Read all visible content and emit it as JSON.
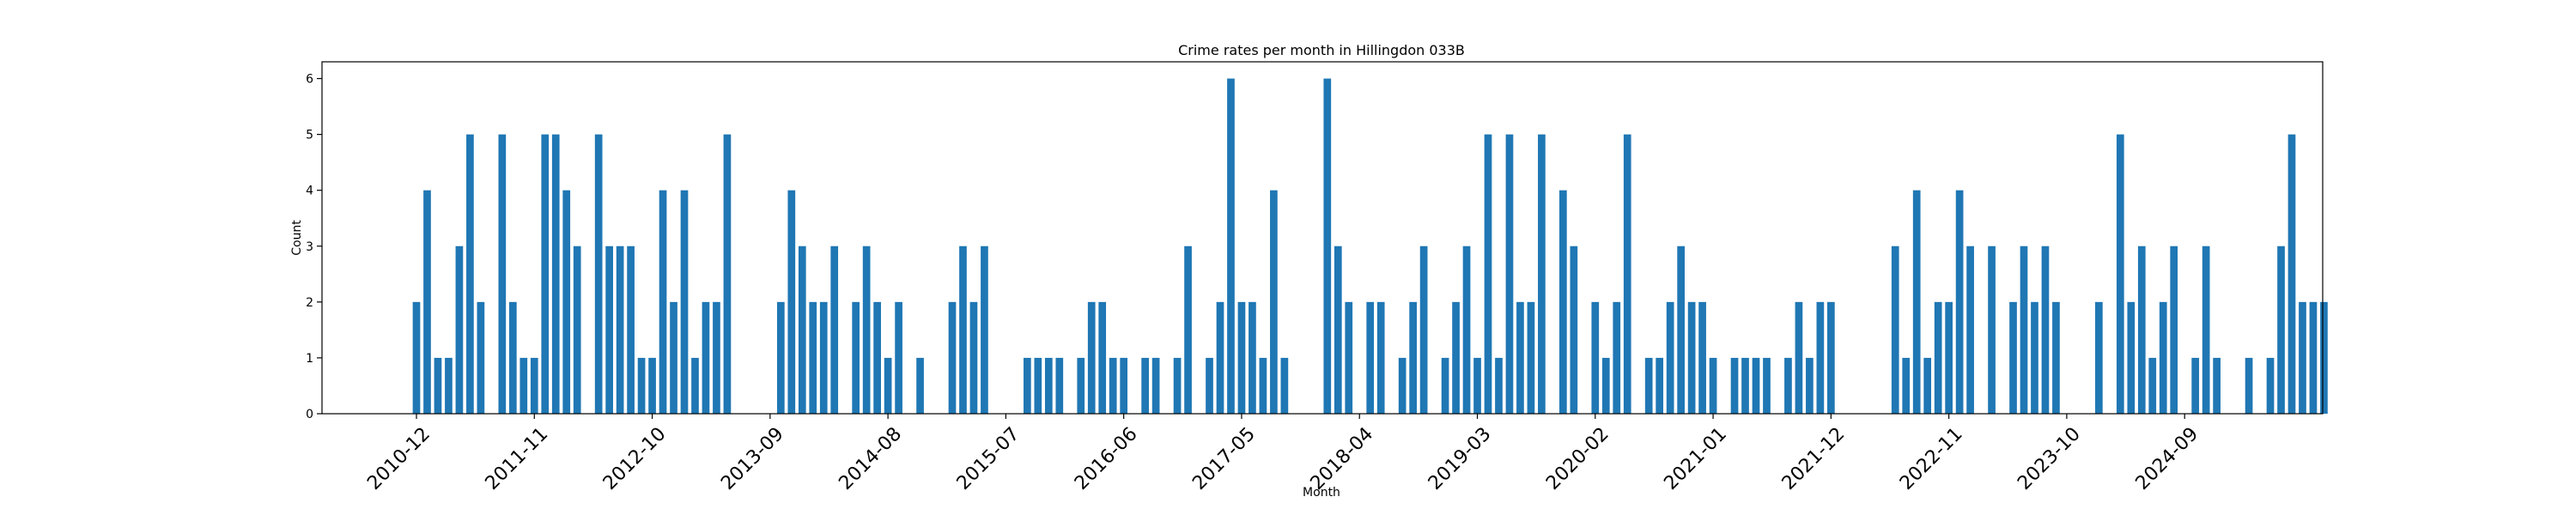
{
  "chart_data": {
    "type": "bar",
    "title": "Crime rates per month in Hillingdon 033B",
    "xlabel": "Month",
    "ylabel": "Count",
    "ylim": [
      0,
      6.3
    ],
    "yticks": [
      0,
      1,
      2,
      3,
      4,
      5,
      6
    ],
    "bar_color": "#1f77b4",
    "grid": false,
    "start_month": "2010-12",
    "xtick_labels": [
      "2010-12",
      "2011-11",
      "2012-10",
      "2013-09",
      "2014-08",
      "2015-07",
      "2016-06",
      "2017-05",
      "2018-04",
      "2019-03",
      "2020-02",
      "2021-01",
      "2021-12",
      "2022-11",
      "2023-10",
      "2024-09"
    ],
    "values": [
      2,
      4,
      1,
      1,
      3,
      5,
      2,
      0,
      5,
      2,
      1,
      1,
      5,
      5,
      4,
      3,
      0,
      5,
      3,
      3,
      3,
      1,
      1,
      4,
      2,
      4,
      1,
      2,
      2,
      5,
      0,
      0,
      0,
      0,
      2,
      4,
      3,
      2,
      2,
      3,
      0,
      2,
      3,
      2,
      1,
      2,
      0,
      1,
      0,
      0,
      2,
      3,
      2,
      3,
      0,
      0,
      0,
      1,
      1,
      1,
      1,
      0,
      1,
      2,
      2,
      1,
      1,
      0,
      1,
      1,
      0,
      1,
      3,
      0,
      1,
      2,
      6,
      2,
      2,
      1,
      4,
      1,
      0,
      0,
      0,
      6,
      3,
      2,
      0,
      2,
      2,
      0,
      1,
      2,
      3,
      0,
      1,
      2,
      3,
      1,
      5,
      1,
      5,
      2,
      2,
      5,
      0,
      4,
      3,
      0,
      2,
      1,
      2,
      5,
      0,
      1,
      1,
      2,
      3,
      2,
      2,
      1,
      0,
      1,
      1,
      1,
      1,
      0,
      1,
      2,
      1,
      2,
      2,
      0,
      0,
      0,
      0,
      0,
      3,
      1,
      4,
      1,
      2,
      2,
      4,
      3,
      0,
      3,
      0,
      2,
      3,
      2,
      3,
      2,
      0,
      0,
      0,
      2,
      0,
      5,
      2,
      3,
      1,
      2,
      3,
      0,
      1,
      3,
      1,
      0,
      0,
      1,
      0,
      1,
      3,
      5,
      2,
      2,
      2
    ]
  }
}
